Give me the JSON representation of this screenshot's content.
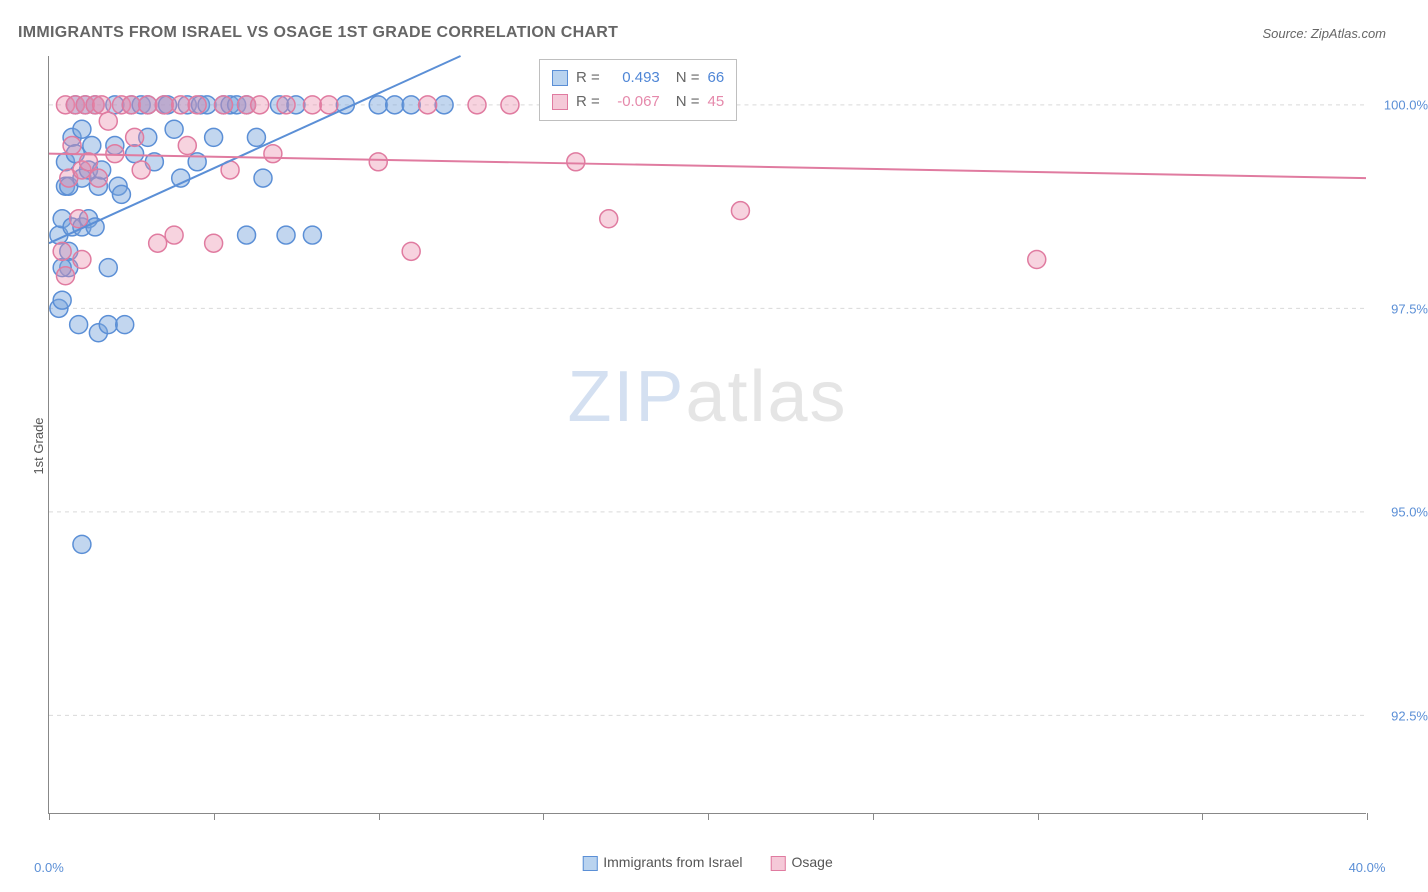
{
  "title": "IMMIGRANTS FROM ISRAEL VS OSAGE 1ST GRADE CORRELATION CHART",
  "source": "Source: ZipAtlas.com",
  "watermark_zip": "ZIP",
  "watermark_atlas": "atlas",
  "ylabel": "1st Grade",
  "chart": {
    "type": "scatter",
    "background_color": "#ffffff",
    "grid_color": "#d9d9d9",
    "axis_color": "#888888",
    "marker_radius": 9,
    "marker_stroke_width": 1.5,
    "line_width": 2,
    "xlim": [
      0,
      40
    ],
    "ylim": [
      91.3,
      100.6
    ],
    "xtick_positions": [
      0,
      5,
      10,
      15,
      20,
      25,
      30,
      35,
      40
    ],
    "xtick_labels": {
      "0": "0.0%",
      "40": "40.0%"
    },
    "ytick_positions": [
      92.5,
      95.0,
      97.5,
      100.0
    ],
    "ytick_labels": [
      "92.5%",
      "95.0%",
      "97.5%",
      "100.0%"
    ],
    "series": [
      {
        "name": "Immigrants from Israel",
        "color_fill": "rgba(120,165,220,0.45)",
        "color_stroke": "#5b8fd6",
        "swatch_fill": "#b9d3ef",
        "swatch_stroke": "#5b8fd6",
        "stat_value_color": "#4f86d6",
        "r": "0.493",
        "n": "66",
        "regression": {
          "x1": 0,
          "y1": 98.3,
          "x2": 12.5,
          "y2": 100.6
        },
        "points": [
          [
            0.3,
            97.5
          ],
          [
            0.3,
            98.4
          ],
          [
            0.4,
            97.6
          ],
          [
            0.4,
            98.6
          ],
          [
            0.5,
            99.0
          ],
          [
            0.5,
            99.3
          ],
          [
            0.6,
            98.2
          ],
          [
            0.6,
            99.0
          ],
          [
            0.6,
            98.0
          ],
          [
            0.7,
            99.6
          ],
          [
            0.7,
            98.5
          ],
          [
            0.8,
            99.4
          ],
          [
            0.8,
            100.0
          ],
          [
            0.9,
            97.3
          ],
          [
            1.0,
            99.1
          ],
          [
            1.0,
            99.7
          ],
          [
            1.0,
            98.5
          ],
          [
            1.1,
            100.0
          ],
          [
            1.2,
            98.6
          ],
          [
            1.2,
            99.2
          ],
          [
            1.3,
            99.5
          ],
          [
            1.4,
            98.5
          ],
          [
            1.4,
            100.0
          ],
          [
            1.5,
            99.0
          ],
          [
            1.5,
            97.2
          ],
          [
            1.6,
            99.2
          ],
          [
            1.8,
            97.3
          ],
          [
            1.8,
            98.0
          ],
          [
            2.0,
            99.5
          ],
          [
            2.0,
            100.0
          ],
          [
            2.1,
            99.0
          ],
          [
            2.2,
            98.9
          ],
          [
            2.3,
            97.3
          ],
          [
            2.5,
            100.0
          ],
          [
            2.6,
            99.4
          ],
          [
            2.8,
            100.0
          ],
          [
            3.0,
            99.6
          ],
          [
            3.0,
            100.0
          ],
          [
            3.2,
            99.3
          ],
          [
            3.5,
            100.0
          ],
          [
            3.6,
            100.0
          ],
          [
            3.8,
            99.7
          ],
          [
            4.0,
            99.1
          ],
          [
            4.2,
            100.0
          ],
          [
            4.5,
            99.3
          ],
          [
            4.6,
            100.0
          ],
          [
            4.8,
            100.0
          ],
          [
            5.0,
            99.6
          ],
          [
            5.3,
            100.0
          ],
          [
            5.5,
            100.0
          ],
          [
            5.7,
            100.0
          ],
          [
            6.0,
            98.4
          ],
          [
            6.0,
            100.0
          ],
          [
            6.3,
            99.6
          ],
          [
            6.5,
            99.1
          ],
          [
            7.0,
            100.0
          ],
          [
            7.2,
            98.4
          ],
          [
            7.5,
            100.0
          ],
          [
            8.0,
            98.4
          ],
          [
            9.0,
            100.0
          ],
          [
            10.0,
            100.0
          ],
          [
            10.5,
            100.0
          ],
          [
            11.0,
            100.0
          ],
          [
            12.0,
            100.0
          ],
          [
            1.0,
            94.6
          ],
          [
            0.4,
            98.0
          ]
        ]
      },
      {
        "name": "Osage",
        "color_fill": "rgba(235,140,170,0.38)",
        "color_stroke": "#e07ba0",
        "swatch_fill": "#f5c9d8",
        "swatch_stroke": "#e07ba0",
        "stat_value_color": "#e589ab",
        "r": "-0.067",
        "n": "45",
        "regression": {
          "x1": 0,
          "y1": 99.4,
          "x2": 40,
          "y2": 99.1
        },
        "points": [
          [
            0.4,
            98.2
          ],
          [
            0.5,
            100.0
          ],
          [
            0.6,
            99.1
          ],
          [
            0.7,
            99.5
          ],
          [
            0.8,
            100.0
          ],
          [
            0.9,
            98.6
          ],
          [
            1.0,
            99.2
          ],
          [
            1.0,
            98.1
          ],
          [
            1.1,
            100.0
          ],
          [
            1.2,
            99.3
          ],
          [
            1.4,
            100.0
          ],
          [
            1.5,
            99.1
          ],
          [
            1.6,
            100.0
          ],
          [
            1.8,
            99.8
          ],
          [
            2.0,
            99.4
          ],
          [
            2.2,
            100.0
          ],
          [
            2.5,
            100.0
          ],
          [
            2.6,
            99.6
          ],
          [
            2.8,
            99.2
          ],
          [
            3.0,
            100.0
          ],
          [
            3.3,
            98.3
          ],
          [
            3.5,
            100.0
          ],
          [
            3.8,
            98.4
          ],
          [
            4.0,
            100.0
          ],
          [
            4.2,
            99.5
          ],
          [
            4.5,
            100.0
          ],
          [
            5.0,
            98.3
          ],
          [
            5.3,
            100.0
          ],
          [
            5.5,
            99.2
          ],
          [
            6.0,
            100.0
          ],
          [
            6.4,
            100.0
          ],
          [
            6.8,
            99.4
          ],
          [
            7.2,
            100.0
          ],
          [
            8.0,
            100.0
          ],
          [
            8.5,
            100.0
          ],
          [
            10.0,
            99.3
          ],
          [
            11.0,
            98.2
          ],
          [
            11.5,
            100.0
          ],
          [
            13.0,
            100.0
          ],
          [
            14.0,
            100.0
          ],
          [
            16.0,
            99.3
          ],
          [
            17.0,
            98.6
          ],
          [
            21.0,
            98.7
          ],
          [
            30.0,
            98.1
          ],
          [
            0.5,
            97.9
          ]
        ]
      }
    ]
  },
  "bottom_legend": [
    {
      "label": "Immigrants from Israel",
      "swatch_fill": "#b9d3ef",
      "swatch_stroke": "#5b8fd6"
    },
    {
      "label": "Osage",
      "swatch_fill": "#f5c9d8",
      "swatch_stroke": "#e07ba0"
    }
  ],
  "stats_labels": {
    "r": "R =",
    "n": "N ="
  }
}
